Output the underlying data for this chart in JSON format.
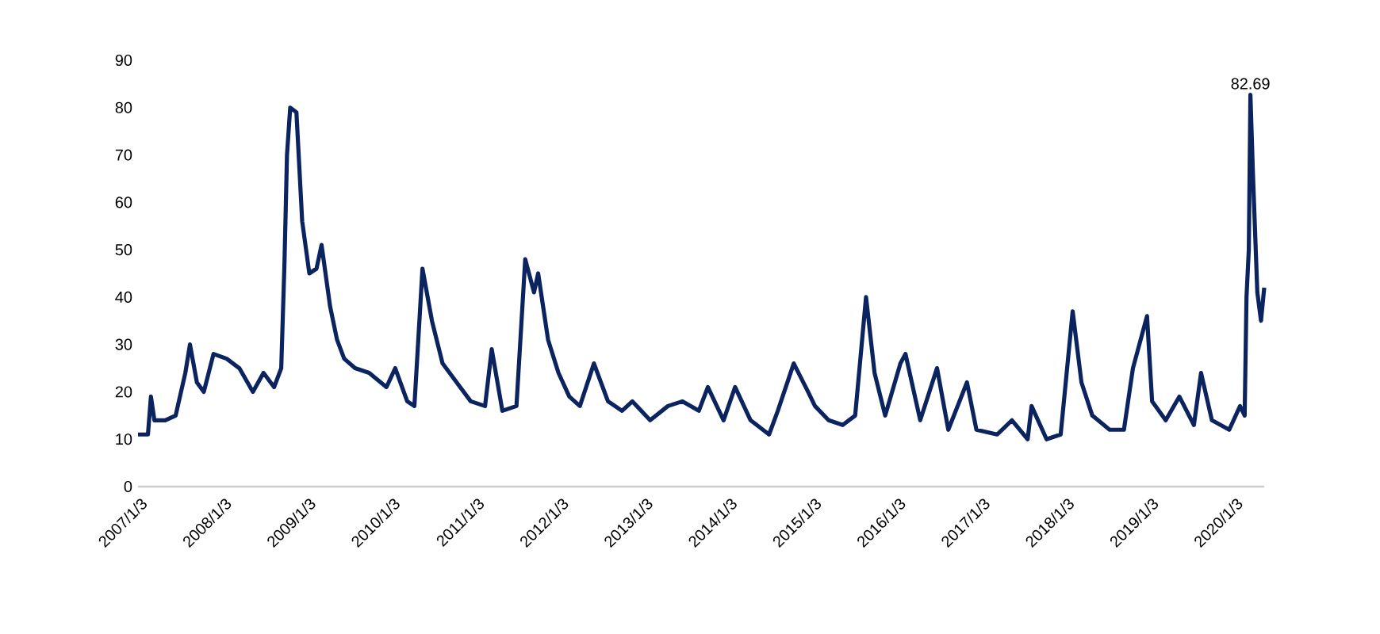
{
  "chart_data": {
    "type": "line",
    "x": [
      "2007-01-03",
      "2007-02-15",
      "2007-02-28",
      "2007-03-15",
      "2007-05-01",
      "2007-06-15",
      "2007-07-27",
      "2007-08-16",
      "2007-09-15",
      "2007-10-15",
      "2007-11-26",
      "2008-01-22",
      "2008-03-17",
      "2008-05-15",
      "2008-06-30",
      "2008-08-15",
      "2008-09-15",
      "2008-09-29",
      "2008-10-10",
      "2008-10-24",
      "2008-11-20",
      "2008-12-15",
      "2009-01-15",
      "2009-02-15",
      "2009-03-09",
      "2009-04-15",
      "2009-05-15",
      "2009-06-15",
      "2009-08-01",
      "2009-10-01",
      "2009-12-15",
      "2010-01-22",
      "2010-03-15",
      "2010-04-15",
      "2010-05-20",
      "2010-06-30",
      "2010-08-15",
      "2010-10-15",
      "2010-12-15",
      "2011-02-15",
      "2011-03-16",
      "2011-05-01",
      "2011-07-01",
      "2011-08-08",
      "2011-09-15",
      "2011-10-03",
      "2011-11-15",
      "2011-12-30",
      "2012-02-15",
      "2012-04-01",
      "2012-06-01",
      "2012-08-01",
      "2012-10-01",
      "2012-11-15",
      "2013-01-31",
      "2013-04-18",
      "2013-06-20",
      "2013-08-30",
      "2013-10-08",
      "2013-12-15",
      "2014-02-03",
      "2014-04-11",
      "2014-06-30",
      "2014-08-07",
      "2014-10-15",
      "2014-12-16",
      "2015-01-15",
      "2015-03-15",
      "2015-05-15",
      "2015-07-08",
      "2015-08-24",
      "2015-09-30",
      "2015-11-15",
      "2016-01-20",
      "2016-02-11",
      "2016-04-15",
      "2016-06-27",
      "2016-08-15",
      "2016-11-04",
      "2016-12-15",
      "2017-03-15",
      "2017-05-18",
      "2017-07-25",
      "2017-08-11",
      "2017-10-15",
      "2017-12-15",
      "2018-02-05",
      "2018-03-15",
      "2018-05-01",
      "2018-07-15",
      "2018-09-15",
      "2018-10-24",
      "2018-12-24",
      "2019-01-15",
      "2019-03-15",
      "2019-05-13",
      "2019-07-15",
      "2019-08-15",
      "2019-10-01",
      "2019-12-15",
      "2020-01-31",
      "2020-02-20",
      "2020-02-28",
      "2020-03-09",
      "2020-03-16",
      "2020-03-27",
      "2020-04-15",
      "2020-05-01",
      "2020-05-15"
    ],
    "values": [
      11,
      11,
      19,
      14,
      14,
      15,
      24,
      30,
      22,
      20,
      28,
      27,
      25,
      20,
      24,
      21,
      25,
      47,
      70,
      80,
      79,
      56,
      45,
      46,
      51,
      38,
      31,
      27,
      25,
      24,
      21,
      25,
      18,
      17,
      46,
      35,
      26,
      22,
      18,
      17,
      29,
      16,
      17,
      48,
      41,
      45,
      31,
      24,
      19,
      17,
      26,
      18,
      16,
      18,
      14,
      17,
      18,
      16,
      21,
      14,
      21,
      14,
      11,
      16,
      26,
      20,
      17,
      14,
      13,
      15,
      40,
      24,
      15,
      26,
      28,
      14,
      25,
      12,
      22,
      12,
      11,
      14,
      10,
      17,
      10,
      11,
      37,
      22,
      15,
      12,
      12,
      25,
      36,
      18,
      14,
      19,
      13,
      24,
      14,
      12,
      17,
      15,
      40,
      50,
      82.69,
      66,
      41,
      35,
      42
    ],
    "color": "#0b2460",
    "annotations": [
      {
        "text": "82.69",
        "x": "2020-03-16",
        "y": 82.69
      }
    ],
    "xlim": [
      "2007-01-03",
      "2020-05-15"
    ],
    "xticks": [
      {
        "value": "2007-01-03",
        "label": "2007/1/3"
      },
      {
        "value": "2008-01-03",
        "label": "2008/1/3"
      },
      {
        "value": "2009-01-03",
        "label": "2009/1/3"
      },
      {
        "value": "2010-01-03",
        "label": "2010/1/3"
      },
      {
        "value": "2011-01-03",
        "label": "2011/1/3"
      },
      {
        "value": "2012-01-03",
        "label": "2012/1/3"
      },
      {
        "value": "2013-01-03",
        "label": "2013/1/3"
      },
      {
        "value": "2014-01-03",
        "label": "2014/1/3"
      },
      {
        "value": "2015-01-03",
        "label": "2015/1/3"
      },
      {
        "value": "2016-01-03",
        "label": "2016/1/3"
      },
      {
        "value": "2017-01-03",
        "label": "2017/1/3"
      },
      {
        "value": "2018-01-03",
        "label": "2018/1/3"
      },
      {
        "value": "2019-01-03",
        "label": "2019/1/3"
      },
      {
        "value": "2020-01-03",
        "label": "2020/1/3"
      }
    ],
    "ylim": [
      0,
      90
    ],
    "yticks": [
      0,
      10,
      20,
      30,
      40,
      50,
      60,
      70,
      80,
      90
    ],
    "grid": false,
    "marker": "none",
    "line_style": "solid"
  }
}
